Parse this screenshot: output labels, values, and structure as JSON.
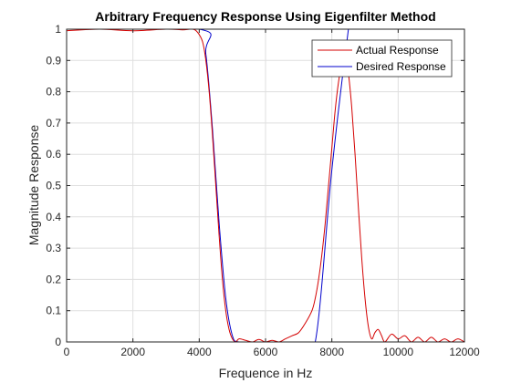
{
  "chart_data": {
    "type": "line",
    "title": "Arbitrary Frequency Response Using Eigenfilter Method",
    "xlabel": "Frequence in Hz",
    "ylabel": "Magnitude Response",
    "xlim": [
      0,
      12000
    ],
    "ylim": [
      0,
      1
    ],
    "xticks": [
      "0",
      "2000",
      "4000",
      "6000",
      "8000",
      "10000",
      "12000"
    ],
    "yticks": [
      "0",
      "0.1",
      "0.2",
      "0.3",
      "0.4",
      "0.5",
      "0.6",
      "0.7",
      "0.8",
      "0.9",
      "1"
    ],
    "grid": true,
    "legend_position": "top-right",
    "series": [
      {
        "name": "Actual Response",
        "color": "#d40000",
        "x": [
          0,
          1000,
          2000,
          3000,
          3500,
          3800,
          3950,
          4100,
          4200,
          4300,
          4400,
          4500,
          4600,
          4700,
          4800,
          4900,
          5000,
          5100,
          5200,
          5400,
          5600,
          5800,
          6000,
          6200,
          6400,
          6600,
          6800,
          7000,
          7200,
          7400,
          7500,
          7600,
          7700,
          7800,
          7900,
          8000,
          8100,
          8200,
          8300,
          8400,
          8450,
          8500,
          8600,
          8700,
          8800,
          8900,
          9000,
          9100,
          9200,
          9300,
          9400,
          9500,
          9600,
          9800,
          10000,
          10200,
          10400,
          10600,
          10800,
          11000,
          11200,
          11400,
          11600,
          11800,
          12000
        ],
        "values": [
          0.995,
          1.0,
          0.995,
          1.0,
          0.998,
          1.0,
          0.99,
          0.96,
          0.9,
          0.8,
          0.66,
          0.5,
          0.34,
          0.2,
          0.1,
          0.04,
          0.01,
          0.0,
          0.01,
          0.005,
          0.0,
          0.008,
          0.0,
          0.005,
          0.0,
          0.01,
          0.02,
          0.03,
          0.06,
          0.1,
          0.14,
          0.2,
          0.28,
          0.38,
          0.5,
          0.62,
          0.74,
          0.83,
          0.89,
          0.9,
          0.89,
          0.86,
          0.75,
          0.6,
          0.43,
          0.27,
          0.14,
          0.05,
          0.01,
          0.03,
          0.04,
          0.02,
          0.0,
          0.025,
          0.01,
          0.02,
          0.0,
          0.015,
          0.0,
          0.015,
          0.0,
          0.01,
          0.0,
          0.01,
          0.0
        ]
      },
      {
        "name": "Desired Response",
        "color": "#0000cc",
        "x": [
          0,
          4000,
          4200,
          4400,
          4600,
          4800,
          5000,
          5200,
          6000,
          7000,
          7500,
          8000,
          8500,
          8550
        ],
        "values": [
          1.0,
          1.0,
          0.92,
          0.68,
          0.38,
          0.14,
          0.02,
          0.0,
          0.0,
          0.0,
          0.0,
          0.55,
          1.0,
          1.0
        ]
      }
    ]
  }
}
